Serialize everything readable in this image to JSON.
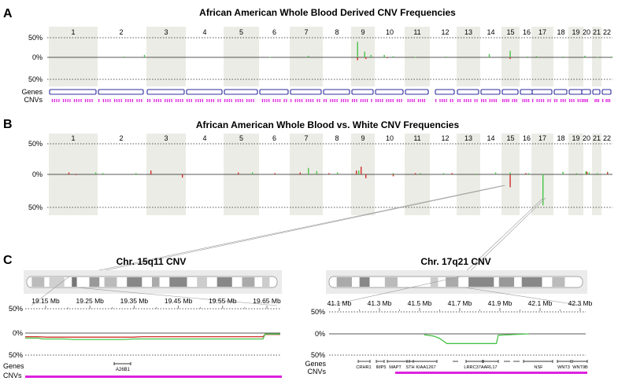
{
  "figure": {
    "panel_a": {
      "letter": "A",
      "title": "African American Whole Blood Derived CNV Frequencies",
      "y_labels": [
        "50%",
        "0%",
        "50%"
      ],
      "track_labels": [
        "Genes",
        "CNVs"
      ]
    },
    "panel_b": {
      "letter": "B",
      "title": "African American Whole Blood vs. White CNV Frequencies",
      "y_labels": [
        "50%",
        "0%",
        "50%"
      ]
    },
    "panel_c": {
      "letter": "C",
      "left": {
        "title": "Chr. 15q11 CNV",
        "mb_labels": [
          "19.15 Mb",
          "19.25 Mb",
          "19.35 Mb",
          "19.45 Mb",
          "19.55 Mb",
          "19.65 Mb"
        ],
        "y_labels": [
          "50%",
          "0%",
          "50%"
        ],
        "track_labels": [
          "Genes",
          "CNVs"
        ],
        "genes": [
          "A26B1"
        ]
      },
      "right": {
        "title": "Chr. 17q21 CNV",
        "mb_labels": [
          "41.1 Mb",
          "41.3 Mb",
          "41.5 Mb",
          "41.7 Mb",
          "41.9 Mb",
          "42.1 Mb",
          "42.3 Mb"
        ],
        "y_labels": [
          "50%",
          "0%",
          "50%"
        ],
        "track_labels": [
          "Genes",
          "CNVs"
        ],
        "genes": [
          "CRHR1",
          "IMP5",
          "MAPT",
          "STH",
          "KIAA1267",
          "LRRC37A",
          "ARL17",
          "NSF",
          "WNT3",
          "WNT9B"
        ]
      }
    },
    "chromosomes": [
      "1",
      "2",
      "3",
      "4",
      "5",
      "6",
      "7",
      "8",
      "9",
      "10",
      "11",
      "12",
      "13",
      "14",
      "15",
      "16",
      "17",
      "18",
      "19",
      "20",
      "21",
      "22"
    ],
    "colors": {
      "shade": "#ecece6",
      "gain": "#46c446",
      "loss": "#d0302a",
      "gene_box": "#2c2c9c",
      "cnv": "#dd22dd",
      "ideogram": "#9a9a9a"
    },
    "chart_data": [
      {
        "type": "bar",
        "title": "African American Whole Blood Derived CNV Frequencies",
        "categories": [
          "1",
          "2",
          "3",
          "4",
          "5",
          "6",
          "7",
          "8",
          "9",
          "10",
          "11",
          "12",
          "13",
          "14",
          "15",
          "16",
          "17",
          "18",
          "19",
          "20",
          "21",
          "22"
        ],
        "ylim": [
          -50,
          50
        ],
        "series": [
          {
            "name": "gain",
            "points": [
              [
                2,
                0.55,
                2
              ],
              [
                2,
                0.98,
                6
              ],
              [
                6,
                0.35,
                1
              ],
              [
                7,
                0.55,
                4
              ],
              [
                9,
                0.25,
                38
              ],
              [
                9,
                0.55,
                14
              ],
              [
                9,
                0.82,
                6
              ],
              [
                10,
                0.3,
                6
              ],
              [
                10,
                0.6,
                3
              ],
              [
                11,
                0.4,
                1
              ],
              [
                12,
                0.5,
                2
              ],
              [
                14,
                0.4,
                8
              ],
              [
                15,
                0.45,
                16
              ],
              [
                16,
                0.5,
                2
              ],
              [
                17,
                0.2,
                3
              ],
              [
                18,
                0.6,
                2
              ],
              [
                20,
                0.3,
                4
              ],
              [
                21,
                0.5,
                1
              ],
              [
                22,
                0.9,
                2
              ]
            ]
          },
          {
            "name": "loss",
            "points": [
              [
                9,
                0.25,
                -7
              ],
              [
                9,
                0.6,
                -4
              ],
              [
                15,
                0.45,
                -4
              ],
              [
                10,
                0.4,
                -1
              ]
            ]
          }
        ]
      },
      {
        "type": "bar",
        "title": "African American Whole Blood vs. White CNV Frequencies",
        "categories": [
          "1",
          "2",
          "3",
          "4",
          "5",
          "6",
          "7",
          "8",
          "9",
          "10",
          "11",
          "12",
          "13",
          "14",
          "15",
          "16",
          "17",
          "18",
          "19",
          "20",
          "21",
          "22"
        ],
        "ylim": [
          -50,
          50
        ],
        "series": [
          {
            "name": "gain",
            "points": [
              [
                1,
                0.95,
                3
              ],
              [
                2,
                0.1,
                2
              ],
              [
                2,
                0.8,
                2
              ],
              [
                5,
                0.8,
                3
              ],
              [
                7,
                0.55,
                10
              ],
              [
                7,
                0.8,
                5
              ],
              [
                8,
                0.5,
                3
              ],
              [
                9,
                0.3,
                6
              ],
              [
                10,
                0.6,
                2
              ],
              [
                11,
                0.6,
                2
              ],
              [
                12,
                0.4,
                2
              ],
              [
                13,
                0.8,
                1
              ],
              [
                14,
                0.7,
                3
              ],
              [
                15,
                0.45,
                3
              ],
              [
                16,
                0.6,
                2
              ],
              [
                17,
                0.5,
                -48
              ],
              [
                18,
                0.6,
                4
              ],
              [
                19,
                0.5,
                2
              ],
              [
                20,
                0.4,
                5
              ],
              [
                20,
                0.7,
                3
              ],
              [
                21,
                0.5,
                2
              ],
              [
                22,
                0.5,
                4
              ]
            ]
          },
          {
            "name": "loss",
            "points": [
              [
                1,
                0.4,
                3
              ],
              [
                1,
                0.55,
                -1
              ],
              [
                3,
                0.1,
                6
              ],
              [
                3,
                0.9,
                -5
              ],
              [
                5,
                0.4,
                3
              ],
              [
                6,
                0.5,
                2
              ],
              [
                7,
                0.3,
                3
              ],
              [
                8,
                0.2,
                2
              ],
              [
                9,
                0.2,
                6
              ],
              [
                9,
                0.4,
                12
              ],
              [
                9,
                0.6,
                -6
              ],
              [
                10,
                0.6,
                -3
              ],
              [
                11,
                0.4,
                2
              ],
              [
                12,
                0.8,
                2
              ],
              [
                15,
                0.45,
                -20
              ],
              [
                16,
                0.4,
                2
              ],
              [
                20,
                0.5,
                4
              ],
              [
                22,
                0.5,
                3
              ]
            ]
          }
        ]
      },
      {
        "type": "line",
        "title": "Chr. 15q11 CNV",
        "xlabel": "Mb",
        "xlim": [
          19.11,
          19.7
        ],
        "ylim": [
          -50,
          50
        ],
        "series": [
          {
            "name": "loss",
            "x": [
              19.11,
              19.14,
              19.16,
              19.36,
              19.38,
              19.66,
              19.665,
              19.7
            ],
            "y": [
              -8,
              -8,
              -9,
              -9,
              -8,
              -8,
              -3,
              -3
            ]
          },
          {
            "name": "gain",
            "x": [
              19.11,
              19.14,
              19.15,
              19.2,
              19.22,
              19.34,
              19.36,
              19.66,
              19.665,
              19.7
            ],
            "y": [
              -11,
              -11,
              -13,
              -13,
              -14,
              -14,
              -13,
              -13,
              -2,
              -2
            ]
          }
        ]
      },
      {
        "type": "line",
        "title": "Chr. 17q21 CNV",
        "xlabel": "Mb",
        "xlim": [
          41.0,
          42.35
        ],
        "ylim": [
          -50,
          50
        ],
        "series": [
          {
            "name": "gain",
            "x": [
              41.5,
              41.55,
              41.58,
              41.62,
              41.88,
              41.89,
              42.05
            ],
            "y": [
              -2,
              -5,
              -10,
              -22,
              -22,
              -3,
              0
            ]
          }
        ]
      }
    ]
  }
}
